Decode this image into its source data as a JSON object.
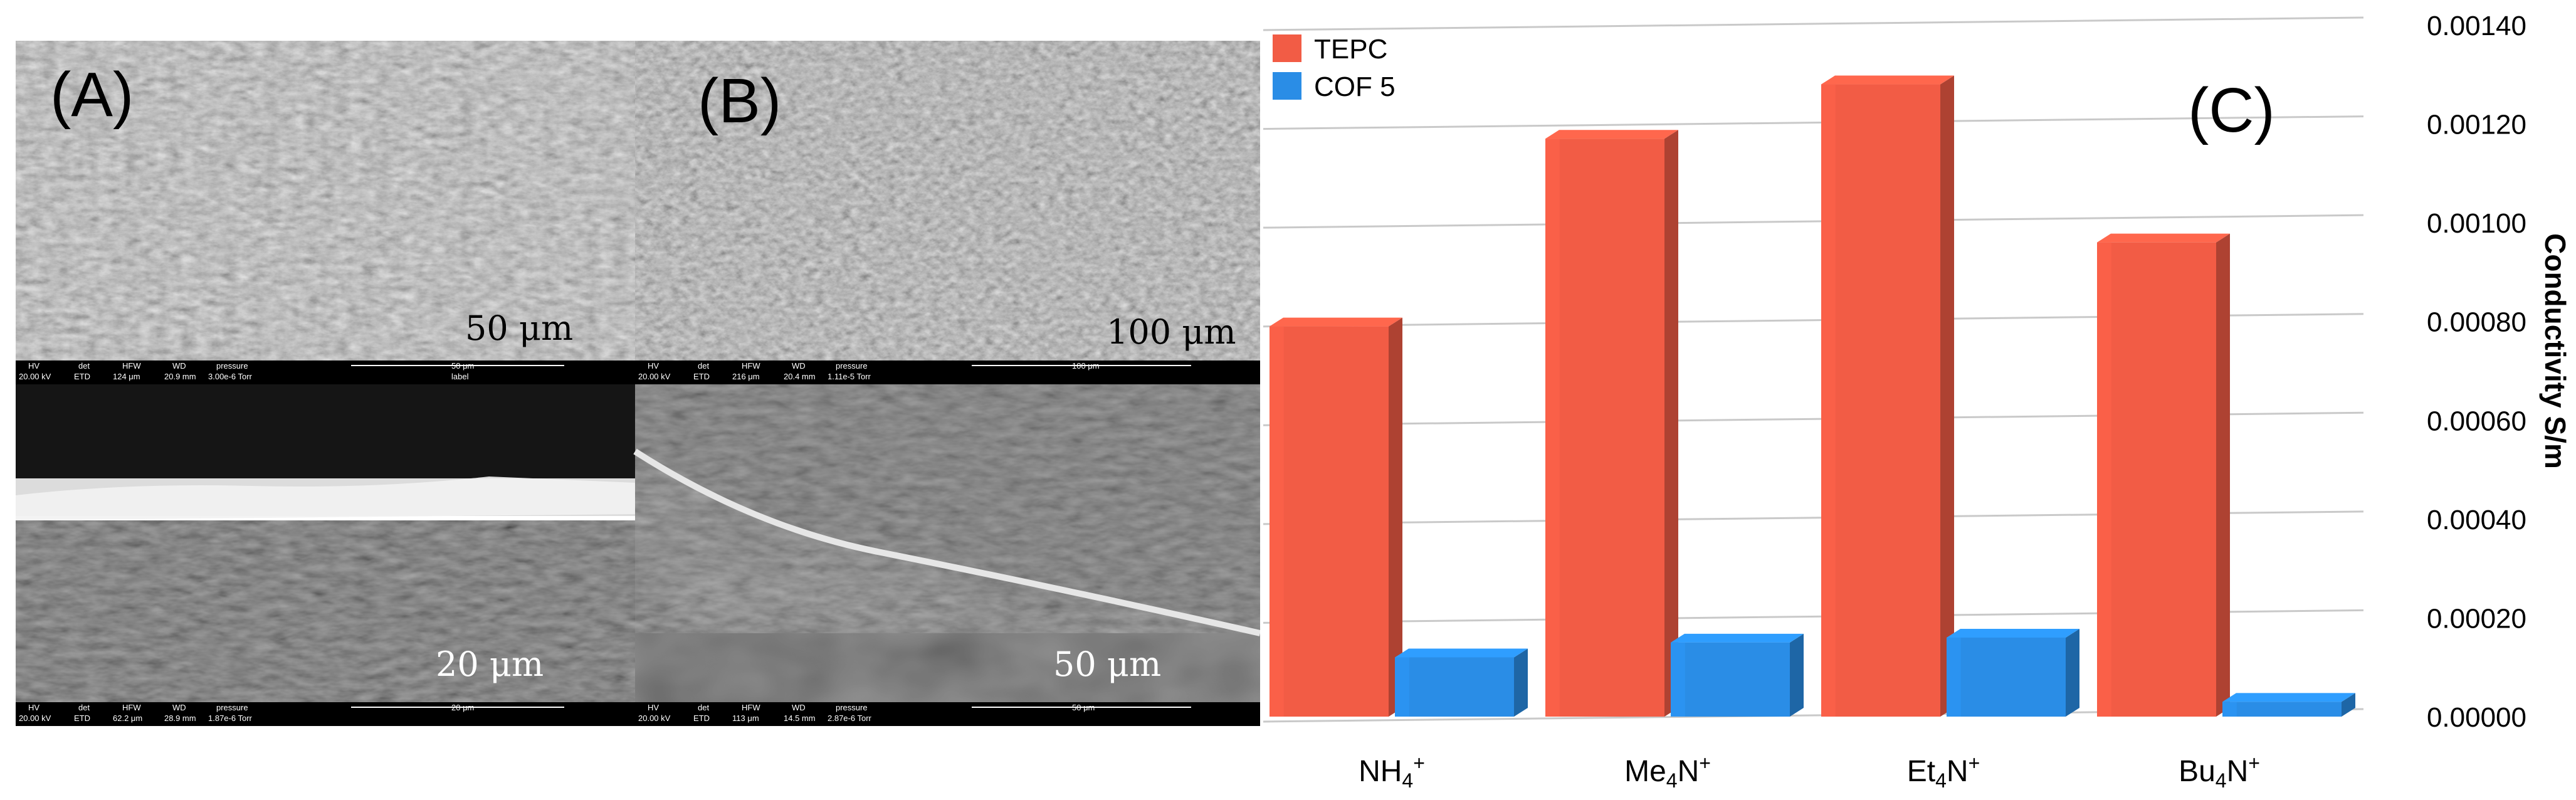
{
  "panels": {
    "A": {
      "label": "(A)",
      "top_image": {
        "scale_text": "50 μm",
        "bar_label": "50 μm",
        "label_text": "label",
        "meta_headers": [
          "HV",
          "det",
          "HFW",
          "WD",
          "pressure"
        ],
        "meta_values": [
          "20.00 kV",
          "ETD",
          "124 μm",
          "20.9 mm",
          "3.00e-6 Torr"
        ]
      },
      "bottom_image": {
        "scale_text": "20 μm",
        "bar_label": "20 μm",
        "meta_headers": [
          "HV",
          "det",
          "HFW",
          "WD",
          "pressure"
        ],
        "meta_values": [
          "20.00 kV",
          "ETD",
          "62.2 μm",
          "28.9 mm",
          "1.87e-6 Torr"
        ]
      }
    },
    "B": {
      "label": "(B)",
      "top_image": {
        "scale_text": "100 μm",
        "bar_label": "100 μm",
        "meta_headers": [
          "HV",
          "det",
          "HFW",
          "WD",
          "pressure"
        ],
        "meta_values": [
          "20.00 kV",
          "ETD",
          "216 μm",
          "20.4 mm",
          "1.11e-5 Torr"
        ]
      },
      "bottom_image": {
        "scale_text": "50 μm",
        "bar_label": "50 μm",
        "meta_headers": [
          "HV",
          "det",
          "HFW",
          "WD",
          "pressure"
        ],
        "meta_values": [
          "20.00 kV",
          "ETD",
          "113 μm",
          "14.5 mm",
          "2.87e-6 Torr"
        ]
      }
    },
    "C": {
      "label": "(C)"
    }
  },
  "chart_data": {
    "type": "bar",
    "categories": [
      {
        "base": "NH",
        "sub": "4",
        "sup": "+"
      },
      {
        "base": "Me",
        "sub": "4",
        "mid": "N",
        "sup": "+"
      },
      {
        "base": "Et",
        "sub": "4",
        "mid": "N",
        "sup": "+"
      },
      {
        "base": "Bu",
        "sub": "4",
        "mid": "N",
        "sup": "+"
      }
    ],
    "series": [
      {
        "name": "TEPC",
        "color": "#f25c45",
        "values": [
          0.00079,
          0.00117,
          0.00128,
          0.00096
        ]
      },
      {
        "name": "COF 5",
        "color": "#2a8de6",
        "values": [
          0.00012,
          0.00015,
          0.00016,
          3e-05
        ]
      }
    ],
    "ylabel": "Conductivity S/m",
    "ylim": [
      0,
      0.0014
    ],
    "yticks": [
      "0.00000",
      "0.00020",
      "0.00040",
      "0.00060",
      "0.00080",
      "0.00100",
      "0.00120",
      "0.00140"
    ],
    "y_axis_side": "right",
    "grid": true,
    "legend_position": "top-left",
    "style": "3d"
  }
}
